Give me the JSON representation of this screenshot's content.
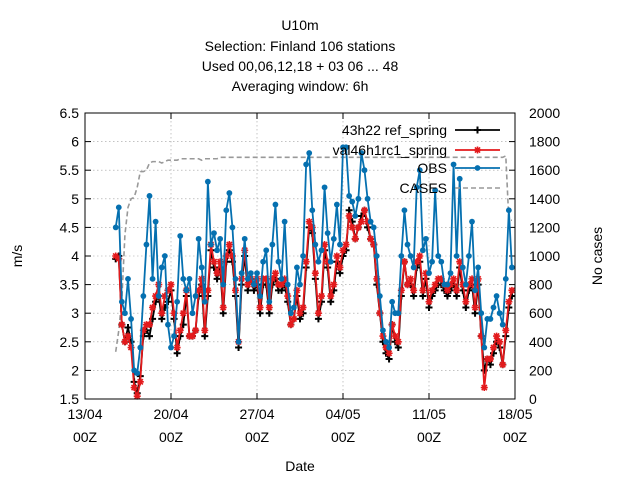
{
  "chart_data": {
    "type": "line",
    "title_lines": [
      "U10m",
      "Selection: Finland     106 stations",
      "Used  00,06,12,18  + 03 06 ... 48",
      "Averaging window:   6h"
    ],
    "xlabel": "Date",
    "ylabel": "m/s",
    "y2label": "No cases",
    "xlim": [
      0,
      35
    ],
    "ylim": [
      1.5,
      6.5
    ],
    "y2lim": [
      0,
      2000
    ],
    "x_ticks": [
      {
        "pos": 0,
        "line1": "13/04",
        "line2": "00Z"
      },
      {
        "pos": 7,
        "line1": "20/04",
        "line2": "00Z"
      },
      {
        "pos": 14,
        "line1": "27/04",
        "line2": "00Z"
      },
      {
        "pos": 21,
        "line1": "04/05",
        "line2": "00Z"
      },
      {
        "pos": 28,
        "line1": "11/05",
        "line2": "00Z"
      },
      {
        "pos": 35,
        "line1": "18/05",
        "line2": "00Z"
      }
    ],
    "y_ticks": [
      "1.5",
      "2",
      "2.5",
      "3",
      "3.5",
      "4",
      "4.5",
      "5",
      "5.5",
      "6",
      "6.5"
    ],
    "y2_ticks": [
      "0",
      "200",
      "400",
      "600",
      "800",
      "1000",
      "1200",
      "1400",
      "1600",
      "1800",
      "2000"
    ],
    "grid": true,
    "legend_position": "top-right",
    "x_start": 2.5,
    "x_step": 0.25,
    "series": [
      {
        "name": "43h22 ref_spring",
        "color": "#000000",
        "marker": "plus",
        "axis": "y",
        "values": [
          3.95,
          4.0,
          2.8,
          2.5,
          2.75,
          2.5,
          1.8,
          1.6,
          1.9,
          2.6,
          2.7,
          2.6,
          2.9,
          3.2,
          3.3,
          2.9,
          3.1,
          3.2,
          3.4,
          2.9,
          2.3,
          2.6,
          2.8,
          3.3,
          2.6,
          2.6,
          2.7,
          3.3,
          3.5,
          2.6,
          3.3,
          4.1,
          3.8,
          3.6,
          3.8,
          3.0,
          3.9,
          4.1,
          3.9,
          3.3,
          2.4,
          3.5,
          4.0,
          3.4,
          3.6,
          3.4,
          3.5,
          3.0,
          3.5,
          3.5,
          3.0,
          3.5,
          3.6,
          3.4,
          3.4,
          3.5,
          3.2,
          2.8,
          2.9,
          3.3,
          2.9,
          3.0,
          3.8,
          4.5,
          4.4,
          3.6,
          2.9,
          3.2,
          4.1,
          3.8,
          3.2,
          3.4,
          3.9,
          3.7,
          4.0,
          4.1,
          4.8,
          4.6,
          4.3,
          4.5,
          4.7,
          4.8,
          4.5,
          4.3,
          4.2,
          3.5,
          3.0,
          2.5,
          2.3,
          2.2,
          2.8,
          2.5,
          2.4,
          3.3,
          3.9,
          3.5,
          3.5,
          3.3,
          3.8,
          3.9,
          3.3,
          3.6,
          3.1,
          3.3,
          3.4,
          3.5,
          3.5,
          3.4,
          3.3,
          3.4,
          3.5,
          3.3,
          3.8,
          3.4,
          3.1,
          3.4,
          3.5,
          3.0,
          3.5,
          2.6,
          2.0,
          2.2,
          2.1,
          2.3,
          2.5,
          2.4,
          2.1,
          2.6,
          3.1,
          3.3
        ]
      },
      {
        "name": "val46h1rc1_spring",
        "color": "#e31a1c",
        "marker": "star",
        "axis": "y",
        "values": [
          4.0,
          3.95,
          2.8,
          2.5,
          2.6,
          2.4,
          1.7,
          1.55,
          1.8,
          2.7,
          2.8,
          2.8,
          3.1,
          3.3,
          3.5,
          3.0,
          3.3,
          3.4,
          3.5,
          3.0,
          2.4,
          2.7,
          3.0,
          3.4,
          2.6,
          2.6,
          2.7,
          3.4,
          3.6,
          2.7,
          3.4,
          4.2,
          3.9,
          3.7,
          3.9,
          3.1,
          4.0,
          4.2,
          4.0,
          3.4,
          2.5,
          3.6,
          4.1,
          3.5,
          3.6,
          3.5,
          3.6,
          3.1,
          3.6,
          3.6,
          3.1,
          3.6,
          3.7,
          3.5,
          3.5,
          3.6,
          3.3,
          2.8,
          2.9,
          3.4,
          3.0,
          3.1,
          3.9,
          4.6,
          4.5,
          3.7,
          3.0,
          3.3,
          4.2,
          3.9,
          3.3,
          3.5,
          4.0,
          3.8,
          4.1,
          4.2,
          4.7,
          4.5,
          4.3,
          4.5,
          4.6,
          4.8,
          4.6,
          4.3,
          4.2,
          3.6,
          3.0,
          2.6,
          2.4,
          2.3,
          2.8,
          2.6,
          2.5,
          3.4,
          3.9,
          3.5,
          3.6,
          3.4,
          3.9,
          4.0,
          3.4,
          3.7,
          3.2,
          3.4,
          3.5,
          3.6,
          3.6,
          3.5,
          3.4,
          3.5,
          3.6,
          3.4,
          3.9,
          3.5,
          3.2,
          3.5,
          3.6,
          3.1,
          3.6,
          2.6,
          1.7,
          2.2,
          2.2,
          2.4,
          2.6,
          2.5,
          2.1,
          2.7,
          3.2,
          3.4
        ]
      },
      {
        "name": "OBS",
        "color": "#0570b0",
        "marker": "circle",
        "axis": "y",
        "values": [
          4.5,
          4.85,
          3.2,
          3.0,
          3.6,
          2.9,
          2.0,
          1.95,
          2.4,
          3.3,
          4.2,
          5.05,
          3.6,
          4.6,
          3.3,
          3.8,
          4.0,
          2.8,
          2.4,
          2.6,
          3.2,
          4.35,
          3.6,
          3.4,
          3.6,
          3.0,
          3.3,
          4.3,
          3.8,
          3.2,
          5.3,
          4.2,
          4.4,
          4.1,
          4.3,
          3.5,
          4.8,
          5.1,
          4.5,
          3.6,
          2.5,
          3.7,
          4.3,
          3.6,
          3.7,
          3.5,
          3.7,
          3.3,
          3.9,
          4.1,
          3.2,
          4.2,
          4.9,
          3.9,
          3.6,
          4.6,
          3.5,
          3.0,
          3.1,
          3.8,
          3.5,
          4.0,
          5.6,
          5.8,
          4.8,
          4.2,
          3.9,
          4.1,
          5.2,
          4.4,
          3.9,
          4.3,
          4.9,
          4.2,
          5.9,
          5.9,
          5.05,
          4.95,
          4.7,
          5.0,
          5.8,
          5.5,
          5.0,
          4.6,
          4.5,
          4.0,
          3.3,
          2.7,
          2.5,
          2.4,
          3.2,
          3.0,
          3.0,
          4.0,
          4.8,
          4.2,
          4.0,
          3.8,
          5.2,
          5.5,
          4.1,
          4.3,
          3.7,
          3.9,
          5.15,
          4.0,
          3.9,
          3.5,
          3.5,
          3.7,
          5.6,
          4.0,
          5.35,
          3.8,
          3.5,
          4.0,
          4.6,
          3.4,
          3.8,
          3.0,
          2.4,
          2.9,
          2.9,
          3.1,
          3.3,
          3.0,
          2.8,
          3.6,
          4.8,
          3.8
        ]
      },
      {
        "name": "CASES",
        "color": "#999999",
        "marker": "none",
        "dashed": true,
        "axis": "y2",
        "values": [
          330,
          480,
          700,
          1150,
          1340,
          1400,
          1410,
          1480,
          1590,
          1590,
          1600,
          1650,
          1660,
          1660,
          1660,
          1650,
          1660,
          1670,
          1670,
          1670,
          1670,
          1680,
          1680,
          1680,
          1680,
          1680,
          1680,
          1680,
          1670,
          1680,
          1680,
          1680,
          1680,
          1680,
          1690,
          1690,
          1690,
          1690,
          1690,
          1690,
          1690,
          1690,
          1690,
          1690,
          1690,
          1690,
          1690,
          1690,
          1690,
          1690,
          1690,
          1690,
          1690,
          1690,
          1690,
          1690,
          1690,
          1690,
          1690,
          1690,
          1690,
          1690,
          1690,
          1690,
          1690,
          1690,
          1690,
          1690,
          1690,
          1690,
          1690,
          1690,
          1690,
          1690,
          1690,
          1690,
          1690,
          1690,
          1690,
          1690,
          1690,
          1690,
          1690,
          1690,
          1690,
          1690,
          1690,
          1690,
          1690,
          1690,
          1690,
          1690,
          1690,
          1690,
          1690,
          1690,
          1690,
          1690,
          1690,
          1690,
          1690,
          1690,
          1690,
          1690,
          1690,
          1690,
          1690,
          1690,
          1690,
          1690,
          1690,
          1690,
          1690,
          1690,
          1690,
          1690,
          1690,
          1690,
          1690,
          1690,
          1690,
          1690,
          1690,
          1690,
          1690,
          1690,
          1690,
          1700,
          1250,
          1250
        ]
      }
    ]
  }
}
